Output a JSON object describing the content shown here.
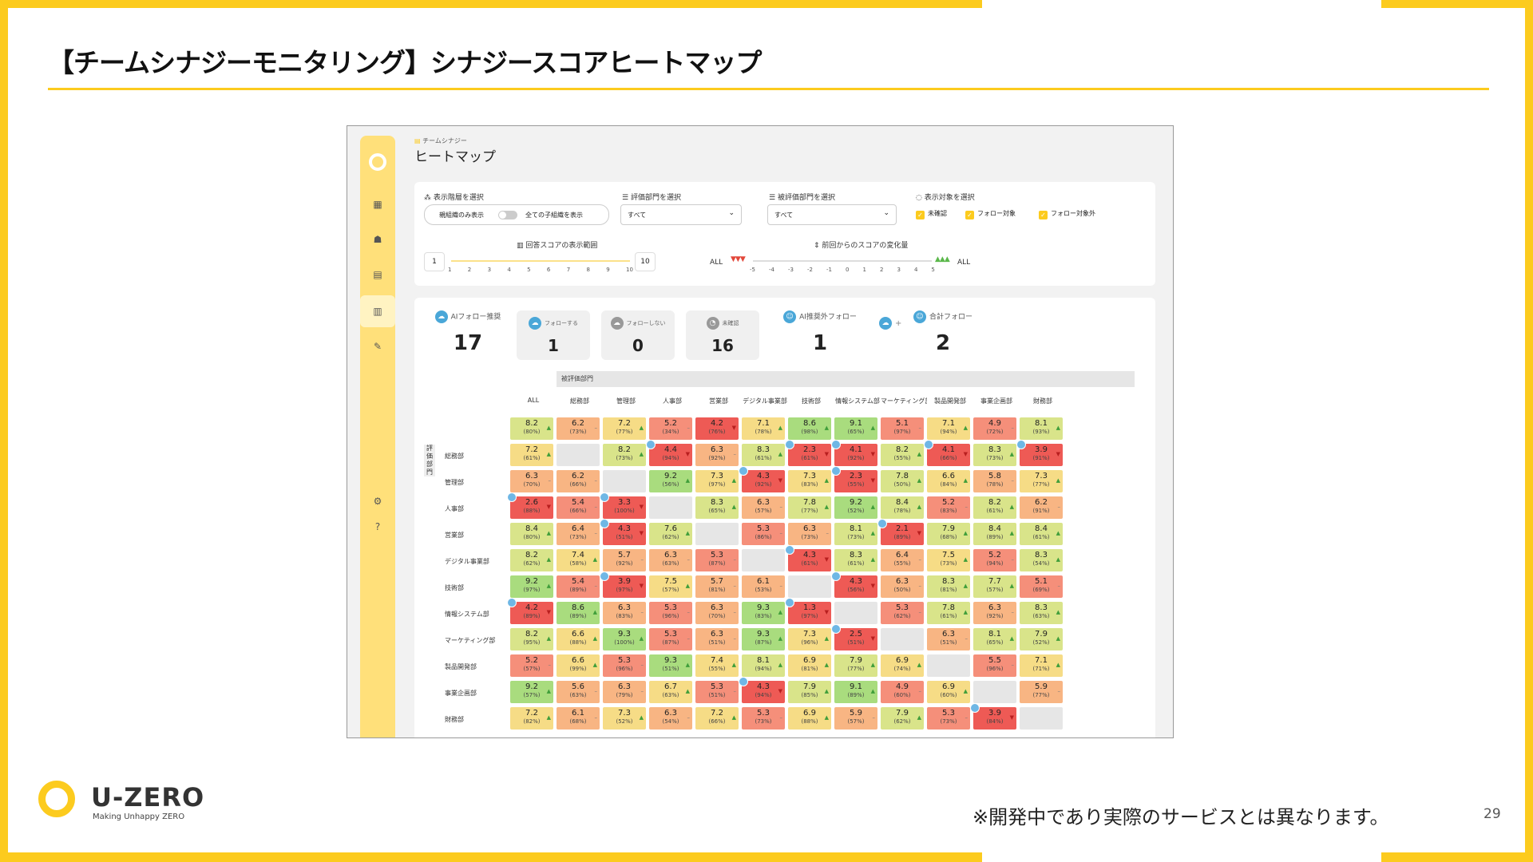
{
  "slide": {
    "title": "【チームシナジーモニタリング】シナジースコアヒートマップ",
    "note": "※開発中であり実際のサービスとは異なります。",
    "page_number": "29",
    "logo_text": "U-ZERO",
    "logo_tagline": "Making Unhappy ZERO",
    "accent_color": "#FCCB1E"
  },
  "app": {
    "breadcrumb": "チームシナジー",
    "page_title": "ヒートマップ",
    "filters": {
      "hierarchy_label": "表示階層を選択",
      "hierarchy_left": "親組織のみ表示",
      "hierarchy_right": "全ての子組織を表示",
      "evaluator_label": "評価部門を選択",
      "evaluator_value": "すべて",
      "evaluated_label": "被評価部門を選択",
      "evaluated_value": "すべて",
      "target_label": "表示対象を選択",
      "targets": [
        "未確認",
        "フォロー対象",
        "フォロー対象外"
      ],
      "score_range_label": "回答スコアの表示範囲",
      "score_min": "1",
      "score_max": "10",
      "score_ticks": [
        "1",
        "2",
        "3",
        "4",
        "5",
        "6",
        "7",
        "8",
        "9",
        "10"
      ],
      "change_label": "前回からのスコアの変化量",
      "change_all_left": "ALL",
      "change_all_right": "ALL",
      "change_ticks": [
        "-5",
        "-4",
        "-3",
        "-2",
        "-1",
        "0",
        "1",
        "2",
        "3",
        "4",
        "5"
      ]
    },
    "stats": {
      "ai_follow_label": "AIフォロー推奨",
      "ai_follow_value": "17",
      "follow_label": "フォローする",
      "follow_value": "1",
      "nofollow_label": "フォローしない",
      "nofollow_value": "0",
      "unconfirmed_label": "未確認",
      "unconfirmed_value": "16",
      "ai_outside_label": "AI推奨外フォロー",
      "ai_outside_value": "1",
      "plus": "+",
      "total_label": "合計フォロー",
      "total_value": "2"
    },
    "heatmap": {
      "evaluated_header": "被評価部門",
      "evaluator_header": "評価部門",
      "columns": [
        "ALL",
        "総務部",
        "管理部",
        "人事部",
        "営業部",
        "デジタル事業部",
        "技術部",
        "情報システム部",
        "マーケティング部",
        "製品開発部",
        "事業企画部",
        "財務部"
      ],
      "rows": [
        "",
        "総務部",
        "管理部",
        "人事部",
        "営業部",
        "デジタル事業部",
        "技術部",
        "情報システム部",
        "マーケティング部",
        "製品開発部",
        "事業企画部",
        "財務部"
      ],
      "cells": [
        [
          [
            "8.2",
            "80%"
          ],
          [
            "6.2",
            "73%"
          ],
          [
            "7.2",
            "77%"
          ],
          [
            "5.2",
            "34%"
          ],
          [
            "4.2",
            "76%"
          ],
          [
            "7.1",
            "78%"
          ],
          [
            "8.6",
            "98%"
          ],
          [
            "9.1",
            "65%"
          ],
          [
            "5.1",
            "97%"
          ],
          [
            "7.1",
            "94%"
          ],
          [
            "4.9",
            "72%"
          ],
          [
            "8.1",
            "93%"
          ]
        ],
        [
          [
            "7.2",
            "61%"
          ],
          null,
          [
            "8.2",
            "73%"
          ],
          [
            "4.4",
            "94%"
          ],
          [
            "6.3",
            "92%"
          ],
          [
            "8.3",
            "61%"
          ],
          [
            "2.3",
            "61%"
          ],
          [
            "4.1",
            "92%"
          ],
          [
            "8.2",
            "55%"
          ],
          [
            "4.1",
            "66%"
          ],
          [
            "8.3",
            "73%"
          ],
          [
            "3.9",
            "91%"
          ]
        ],
        [
          [
            "6.3",
            "70%"
          ],
          [
            "6.2",
            "66%"
          ],
          null,
          [
            "9.2",
            "56%"
          ],
          [
            "7.3",
            "97%"
          ],
          [
            "4.3",
            "92%"
          ],
          [
            "7.3",
            "83%"
          ],
          [
            "2.3",
            "55%"
          ],
          [
            "7.8",
            "50%"
          ],
          [
            "6.6",
            "84%"
          ],
          [
            "5.8",
            "78%"
          ],
          [
            "7.3",
            "77%"
          ]
        ],
        [
          [
            "2.6",
            "88%"
          ],
          [
            "5.4",
            "66%"
          ],
          [
            "3.3",
            "100%"
          ],
          null,
          [
            "8.3",
            "65%"
          ],
          [
            "6.3",
            "57%"
          ],
          [
            "7.8",
            "77%"
          ],
          [
            "9.2",
            "52%"
          ],
          [
            "8.4",
            "78%"
          ],
          [
            "5.2",
            "83%"
          ],
          [
            "8.2",
            "61%"
          ],
          [
            "6.2",
            "91%"
          ]
        ],
        [
          [
            "8.4",
            "80%"
          ],
          [
            "6.4",
            "73%"
          ],
          [
            "4.3",
            "51%"
          ],
          [
            "7.6",
            "62%"
          ],
          null,
          [
            "5.3",
            "86%"
          ],
          [
            "6.3",
            "73%"
          ],
          [
            "8.1",
            "73%"
          ],
          [
            "2.1",
            "89%"
          ],
          [
            "7.9",
            "68%"
          ],
          [
            "8.4",
            "89%"
          ],
          [
            "8.4",
            "61%"
          ]
        ],
        [
          [
            "8.2",
            "62%"
          ],
          [
            "7.4",
            "58%"
          ],
          [
            "5.7",
            "92%"
          ],
          [
            "6.3",
            "63%"
          ],
          [
            "5.3",
            "87%"
          ],
          null,
          [
            "4.3",
            "61%"
          ],
          [
            "8.3",
            "61%"
          ],
          [
            "6.4",
            "55%"
          ],
          [
            "7.5",
            "73%"
          ],
          [
            "5.2",
            "94%"
          ],
          [
            "8.3",
            "54%"
          ]
        ],
        [
          [
            "9.2",
            "97%"
          ],
          [
            "5.4",
            "89%"
          ],
          [
            "3.9",
            "97%"
          ],
          [
            "7.5",
            "57%"
          ],
          [
            "5.7",
            "81%"
          ],
          [
            "6.1",
            "53%"
          ],
          null,
          [
            "4.3",
            "56%"
          ],
          [
            "6.3",
            "50%"
          ],
          [
            "8.3",
            "81%"
          ],
          [
            "7.7",
            "57%"
          ],
          [
            "5.1",
            "69%"
          ]
        ],
        [
          [
            "4.2",
            "89%"
          ],
          [
            "8.6",
            "89%"
          ],
          [
            "6.3",
            "83%"
          ],
          [
            "5.3",
            "96%"
          ],
          [
            "6.3",
            "70%"
          ],
          [
            "9.3",
            "83%"
          ],
          [
            "1.3",
            "97%"
          ],
          null,
          [
            "5.3",
            "62%"
          ],
          [
            "7.8",
            "61%"
          ],
          [
            "6.3",
            "92%"
          ],
          [
            "8.3",
            "63%"
          ]
        ],
        [
          [
            "8.2",
            "95%"
          ],
          [
            "6.6",
            "88%"
          ],
          [
            "9.3",
            "100%"
          ],
          [
            "5.3",
            "87%"
          ],
          [
            "6.3",
            "51%"
          ],
          [
            "9.3",
            "87%"
          ],
          [
            "7.3",
            "96%"
          ],
          [
            "2.5",
            "51%"
          ],
          null,
          [
            "6.3",
            "51%"
          ],
          [
            "8.1",
            "65%"
          ],
          [
            "7.9",
            "52%"
          ]
        ],
        [
          [
            "5.2",
            "57%"
          ],
          [
            "6.6",
            "99%"
          ],
          [
            "5.3",
            "96%"
          ],
          [
            "9.3",
            "51%"
          ],
          [
            "7.4",
            "55%"
          ],
          [
            "8.1",
            "94%"
          ],
          [
            "6.9",
            "81%"
          ],
          [
            "7.9",
            "77%"
          ],
          [
            "6.9",
            "74%"
          ],
          null,
          [
            "5.5",
            "96%"
          ],
          [
            "7.1",
            "71%"
          ]
        ],
        [
          [
            "9.2",
            "57%"
          ],
          [
            "5.6",
            "63%"
          ],
          [
            "6.3",
            "79%"
          ],
          [
            "6.7",
            "63%"
          ],
          [
            "5.3",
            "51%"
          ],
          [
            "4.3",
            "94%"
          ],
          [
            "7.9",
            "85%"
          ],
          [
            "9.1",
            "89%"
          ],
          [
            "4.9",
            "60%"
          ],
          [
            "6.9",
            "60%"
          ],
          null,
          [
            "5.9",
            "77%"
          ]
        ],
        [
          [
            "7.2",
            "82%"
          ],
          [
            "6.1",
            "68%"
          ],
          [
            "7.3",
            "52%"
          ],
          [
            "6.3",
            "54%"
          ],
          [
            "7.2",
            "66%"
          ],
          [
            "5.3",
            "73%"
          ],
          [
            "6.9",
            "88%"
          ],
          [
            "5.9",
            "57%"
          ],
          [
            "7.9",
            "62%"
          ],
          [
            "5.3",
            "73%"
          ],
          [
            "3.9",
            "84%"
          ],
          null
        ]
      ]
    }
  }
}
